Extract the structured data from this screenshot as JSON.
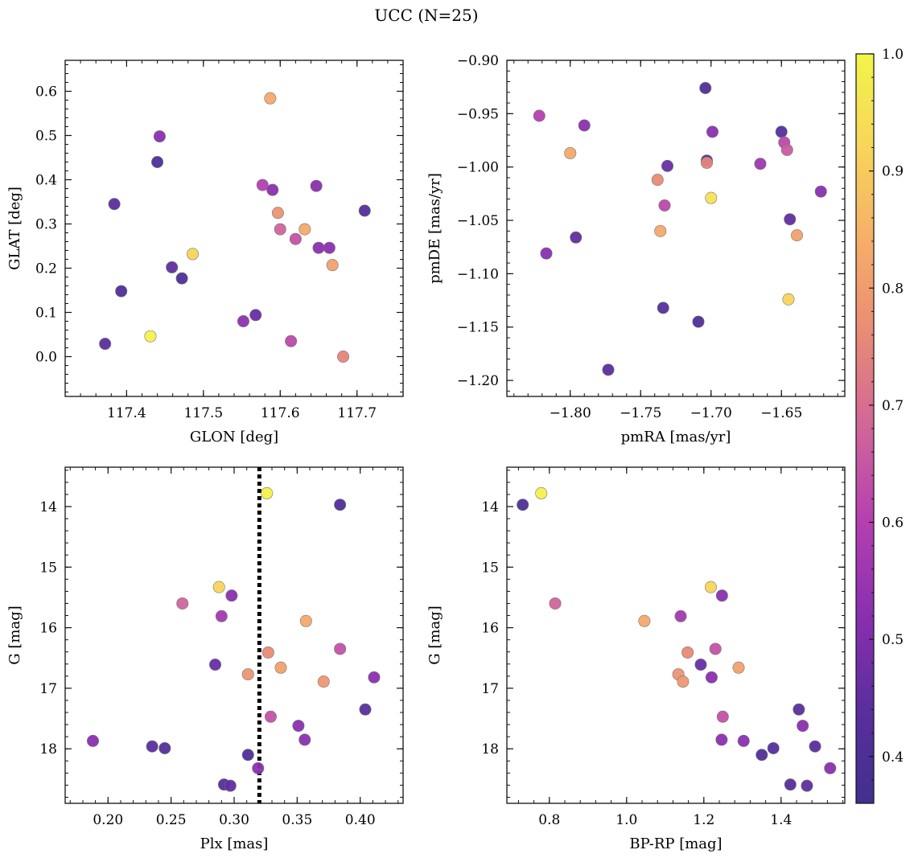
{
  "figure": {
    "title": "UCC (N=25)"
  },
  "colorbar": {
    "range": [
      0.36,
      1.0
    ],
    "ticks": [
      0.4,
      0.5,
      0.6,
      0.7,
      0.8,
      0.9,
      1.0
    ],
    "tick_labels": [
      "0.4",
      "0.5",
      "0.6",
      "0.7",
      "0.8",
      "0.9",
      "1.0"
    ],
    "colormap": "plasma-like",
    "stops": [
      "#41308f",
      "#5a2e9e",
      "#8a2fb0",
      "#b43fb0",
      "#d0659a",
      "#e98a76",
      "#f6ae68",
      "#f7d55a",
      "#f2f54a"
    ]
  },
  "chart_data": [
    {
      "type": "scatter",
      "xlabel": "GLON [deg]",
      "ylabel": "GLAT [deg]",
      "xlim": [
        117.32,
        117.76
      ],
      "ylim": [
        -0.09,
        0.67
      ],
      "y_inverted": false,
      "xticks": [
        117.4,
        117.5,
        117.6,
        117.7
      ],
      "xtick_labels": [
        "117.4",
        "117.5",
        "117.6",
        "117.7"
      ],
      "yticks": [
        0.0,
        0.1,
        0.2,
        0.3,
        0.4,
        0.5,
        0.6
      ],
      "ytick_labels": [
        "0.0",
        "0.1",
        "0.2",
        "0.3",
        "0.4",
        "0.5",
        "0.6"
      ],
      "vline": null,
      "points": [
        {
          "x": 117.587,
          "y": 0.584,
          "c": 0.83
        },
        {
          "x": 117.443,
          "y": 0.498,
          "c": 0.52
        },
        {
          "x": 117.44,
          "y": 0.44,
          "c": 0.4
        },
        {
          "x": 117.577,
          "y": 0.388,
          "c": 0.6
        },
        {
          "x": 117.59,
          "y": 0.377,
          "c": 0.52
        },
        {
          "x": 117.647,
          "y": 0.386,
          "c": 0.52
        },
        {
          "x": 117.384,
          "y": 0.345,
          "c": 0.44
        },
        {
          "x": 117.71,
          "y": 0.33,
          "c": 0.42
        },
        {
          "x": 117.597,
          "y": 0.325,
          "c": 0.78
        },
        {
          "x": 117.632,
          "y": 0.288,
          "c": 0.83
        },
        {
          "x": 117.6,
          "y": 0.288,
          "c": 0.68
        },
        {
          "x": 117.62,
          "y": 0.266,
          "c": 0.64
        },
        {
          "x": 117.65,
          "y": 0.246,
          "c": 0.52
        },
        {
          "x": 117.664,
          "y": 0.246,
          "c": 0.52
        },
        {
          "x": 117.486,
          "y": 0.232,
          "c": 0.92
        },
        {
          "x": 117.668,
          "y": 0.207,
          "c": 0.81
        },
        {
          "x": 117.459,
          "y": 0.202,
          "c": 0.45
        },
        {
          "x": 117.472,
          "y": 0.177,
          "c": 0.4
        },
        {
          "x": 117.393,
          "y": 0.148,
          "c": 0.4
        },
        {
          "x": 117.568,
          "y": 0.094,
          "c": 0.46
        },
        {
          "x": 117.552,
          "y": 0.08,
          "c": 0.53
        },
        {
          "x": 117.431,
          "y": 0.046,
          "c": 0.99
        },
        {
          "x": 117.614,
          "y": 0.035,
          "c": 0.62
        },
        {
          "x": 117.372,
          "y": 0.029,
          "c": 0.44
        },
        {
          "x": 117.682,
          "y": 0.0,
          "c": 0.75
        }
      ]
    },
    {
      "type": "scatter",
      "xlabel": "pmRA [mas/yr]",
      "ylabel": "pmDE [mas/yr]",
      "xlim": [
        -1.845,
        -1.605
      ],
      "ylim": [
        -1.215,
        -0.9
      ],
      "y_inverted": false,
      "xticks": [
        -1.8,
        -1.75,
        -1.7,
        -1.65
      ],
      "xtick_labels": [
        "−1.80",
        "−1.75",
        "−1.70",
        "−1.65"
      ],
      "yticks": [
        -0.9,
        -0.95,
        -1.0,
        -1.05,
        -1.1,
        -1.15,
        -1.2
      ],
      "ytick_labels": [
        "−0.90",
        "−0.95",
        "−1.00",
        "−1.05",
        "−1.10",
        "−1.15",
        "−1.20"
      ],
      "vline": null,
      "points": [
        {
          "x": -1.704,
          "y": -0.926,
          "c": 0.4
        },
        {
          "x": -1.822,
          "y": -0.952,
          "c": 0.6
        },
        {
          "x": -1.79,
          "y": -0.961,
          "c": 0.52
        },
        {
          "x": -1.699,
          "y": -0.967,
          "c": 0.52
        },
        {
          "x": -1.65,
          "y": -0.967,
          "c": 0.42
        },
        {
          "x": -1.648,
          "y": -0.977,
          "c": 0.62
        },
        {
          "x": -1.646,
          "y": -0.984,
          "c": 0.66
        },
        {
          "x": -1.8,
          "y": -0.987,
          "c": 0.83
        },
        {
          "x": -1.703,
          "y": -0.994,
          "c": 0.4
        },
        {
          "x": -1.703,
          "y": -0.996,
          "c": 0.75
        },
        {
          "x": -1.731,
          "y": -0.999,
          "c": 0.46
        },
        {
          "x": -1.665,
          "y": -0.997,
          "c": 0.56
        },
        {
          "x": -1.738,
          "y": -1.012,
          "c": 0.76
        },
        {
          "x": -1.622,
          "y": -1.023,
          "c": 0.52
        },
        {
          "x": -1.7,
          "y": -1.029,
          "c": 0.95
        },
        {
          "x": -1.733,
          "y": -1.036,
          "c": 0.62
        },
        {
          "x": -1.644,
          "y": -1.049,
          "c": 0.45
        },
        {
          "x": -1.736,
          "y": -1.06,
          "c": 0.83
        },
        {
          "x": -1.639,
          "y": -1.064,
          "c": 0.81
        },
        {
          "x": -1.796,
          "y": -1.066,
          "c": 0.45
        },
        {
          "x": -1.817,
          "y": -1.081,
          "c": 0.52
        },
        {
          "x": -1.645,
          "y": -1.124,
          "c": 0.92
        },
        {
          "x": -1.734,
          "y": -1.132,
          "c": 0.42
        },
        {
          "x": -1.709,
          "y": -1.145,
          "c": 0.4
        },
        {
          "x": -1.773,
          "y": -1.19,
          "c": 0.44
        }
      ]
    },
    {
      "type": "scatter",
      "xlabel": "Plx [mas]",
      "ylabel": "G [mag]",
      "xlim": [
        0.166,
        0.434
      ],
      "ylim": [
        18.9,
        13.35
      ],
      "y_inverted": true,
      "xticks": [
        0.2,
        0.25,
        0.3,
        0.35,
        0.4
      ],
      "xtick_labels": [
        "0.20",
        "0.25",
        "0.30",
        "0.35",
        "0.40"
      ],
      "yticks": [
        14,
        15,
        16,
        17,
        18
      ],
      "ytick_labels": [
        "14",
        "15",
        "16",
        "17",
        "18"
      ],
      "vline": 0.32,
      "points": [
        {
          "x": 0.326,
          "y": 13.78,
          "c": 0.99
        },
        {
          "x": 0.384,
          "y": 13.97,
          "c": 0.4
        },
        {
          "x": 0.288,
          "y": 15.33,
          "c": 0.92
        },
        {
          "x": 0.298,
          "y": 15.47,
          "c": 0.52
        },
        {
          "x": 0.259,
          "y": 15.6,
          "c": 0.68
        },
        {
          "x": 0.29,
          "y": 15.81,
          "c": 0.57
        },
        {
          "x": 0.357,
          "y": 15.89,
          "c": 0.83
        },
        {
          "x": 0.384,
          "y": 16.35,
          "c": 0.64
        },
        {
          "x": 0.327,
          "y": 16.41,
          "c": 0.76
        },
        {
          "x": 0.285,
          "y": 16.61,
          "c": 0.46
        },
        {
          "x": 0.337,
          "y": 16.66,
          "c": 0.81
        },
        {
          "x": 0.311,
          "y": 16.77,
          "c": 0.78
        },
        {
          "x": 0.411,
          "y": 16.82,
          "c": 0.52
        },
        {
          "x": 0.371,
          "y": 16.89,
          "c": 0.79
        },
        {
          "x": 0.404,
          "y": 17.35,
          "c": 0.43
        },
        {
          "x": 0.329,
          "y": 17.47,
          "c": 0.64
        },
        {
          "x": 0.351,
          "y": 17.62,
          "c": 0.52
        },
        {
          "x": 0.356,
          "y": 17.85,
          "c": 0.52
        },
        {
          "x": 0.188,
          "y": 17.87,
          "c": 0.52
        },
        {
          "x": 0.235,
          "y": 17.96,
          "c": 0.44
        },
        {
          "x": 0.245,
          "y": 17.99,
          "c": 0.42
        },
        {
          "x": 0.311,
          "y": 18.1,
          "c": 0.4
        },
        {
          "x": 0.319,
          "y": 18.32,
          "c": 0.52
        },
        {
          "x": 0.292,
          "y": 18.59,
          "c": 0.42
        },
        {
          "x": 0.297,
          "y": 18.61,
          "c": 0.45
        }
      ]
    },
    {
      "type": "scatter",
      "xlabel": "BP-RP [mag]",
      "ylabel": "G [mag]",
      "xlim": [
        0.69,
        1.565
      ],
      "ylim": [
        18.9,
        13.35
      ],
      "y_inverted": true,
      "xticks": [
        0.8,
        1.0,
        1.2,
        1.4
      ],
      "xtick_labels": [
        "0.8",
        "1.0",
        "1.2",
        "1.4"
      ],
      "yticks": [
        14,
        15,
        16,
        17,
        18
      ],
      "ytick_labels": [
        "14",
        "15",
        "16",
        "17",
        "18"
      ],
      "vline": null,
      "points": [
        {
          "x": 0.731,
          "y": 13.97,
          "c": 0.4
        },
        {
          "x": 0.779,
          "y": 13.78,
          "c": 0.99
        },
        {
          "x": 1.218,
          "y": 15.33,
          "c": 0.92
        },
        {
          "x": 1.247,
          "y": 15.47,
          "c": 0.52
        },
        {
          "x": 0.815,
          "y": 15.6,
          "c": 0.68
        },
        {
          "x": 1.14,
          "y": 15.81,
          "c": 0.57
        },
        {
          "x": 1.046,
          "y": 15.89,
          "c": 0.83
        },
        {
          "x": 1.23,
          "y": 16.35,
          "c": 0.64
        },
        {
          "x": 1.158,
          "y": 16.41,
          "c": 0.76
        },
        {
          "x": 1.192,
          "y": 16.61,
          "c": 0.46
        },
        {
          "x": 1.29,
          "y": 16.66,
          "c": 0.81
        },
        {
          "x": 1.134,
          "y": 16.77,
          "c": 0.78
        },
        {
          "x": 1.22,
          "y": 16.82,
          "c": 0.52
        },
        {
          "x": 1.146,
          "y": 16.89,
          "c": 0.79
        },
        {
          "x": 1.446,
          "y": 17.35,
          "c": 0.43
        },
        {
          "x": 1.249,
          "y": 17.47,
          "c": 0.64
        },
        {
          "x": 1.456,
          "y": 17.62,
          "c": 0.52
        },
        {
          "x": 1.246,
          "y": 17.85,
          "c": 0.52
        },
        {
          "x": 1.303,
          "y": 17.87,
          "c": 0.52
        },
        {
          "x": 1.488,
          "y": 17.96,
          "c": 0.44
        },
        {
          "x": 1.38,
          "y": 17.99,
          "c": 0.42
        },
        {
          "x": 1.35,
          "y": 18.1,
          "c": 0.4
        },
        {
          "x": 1.527,
          "y": 18.32,
          "c": 0.52
        },
        {
          "x": 1.424,
          "y": 18.59,
          "c": 0.42
        },
        {
          "x": 1.467,
          "y": 18.61,
          "c": 0.45
        }
      ]
    }
  ]
}
